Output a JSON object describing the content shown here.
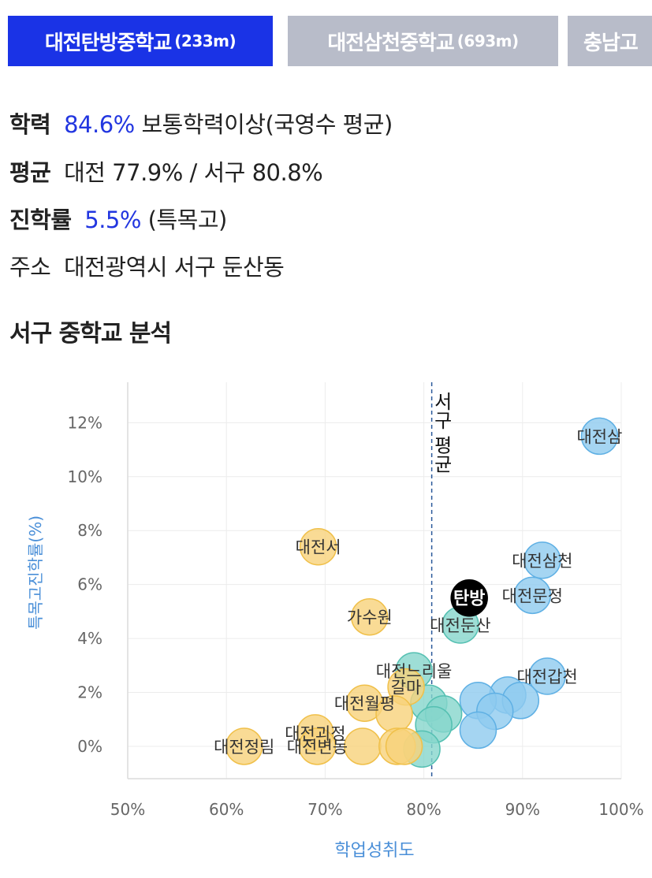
{
  "tabs": [
    {
      "name": "대전탄방중학교",
      "distance": "(233m)",
      "active": true
    },
    {
      "name": "대전삼천중학교",
      "distance": "(693m)",
      "active": false
    },
    {
      "name": "충남고",
      "distance": "",
      "active": false
    }
  ],
  "info": {
    "achievement_label": "학력",
    "achievement_value": "84.6%",
    "achievement_desc": "보통학력이상(국영수 평균)",
    "average_label": "평균",
    "average_value": "대전 77.9% / 서구 80.8%",
    "advance_label": "진학률",
    "advance_value": "5.5%",
    "advance_desc": "(특목고)",
    "address_label": "주소",
    "address_value": "대전광역시 서구 둔산동"
  },
  "section_title": "서구 중학교 분석",
  "colors": {
    "tab_active": "#1a33e6",
    "tab_inactive": "#b8bcc9",
    "highlight_text": "#2236e0",
    "axis_title": "#4a8fd8",
    "bubble_blue": "#8ecbef",
    "bubble_blue_edge": "#5fb0e4",
    "bubble_yellow": "#f7d27a",
    "bubble_yellow_edge": "#f0c04a",
    "bubble_teal": "#86d6cc",
    "bubble_teal_edge": "#55c0b2",
    "bubble_selected": "#000000"
  },
  "chart_data": {
    "type": "scatter",
    "xlabel": "학업성취도",
    "ylabel": "특목고진학률(%)",
    "xlim": [
      50,
      100
    ],
    "ylim": [
      -1.2,
      13.5
    ],
    "xticks": [
      "50%",
      "60%",
      "70%",
      "80%",
      "90%",
      "100%"
    ],
    "yticks": [
      "0%",
      "2%",
      "4%",
      "6%",
      "8%",
      "10%",
      "12%"
    ],
    "grid": true,
    "reference_line": {
      "axis": "x",
      "value": 80.8,
      "label": "서구 평균"
    },
    "points": [
      {
        "label": "대전삼",
        "x": 97.8,
        "y": 11.5,
        "group": "blue"
      },
      {
        "label": "대전삼천",
        "x": 92.0,
        "y": 6.9,
        "group": "blue"
      },
      {
        "label": "대전문정",
        "x": 91.0,
        "y": 5.6,
        "group": "blue"
      },
      {
        "label": "대전갑천",
        "x": 92.5,
        "y": 2.6,
        "group": "blue"
      },
      {
        "label": "",
        "x": 88.5,
        "y": 1.9,
        "group": "blue"
      },
      {
        "label": "",
        "x": 89.8,
        "y": 1.7,
        "group": "blue"
      },
      {
        "label": "",
        "x": 85.5,
        "y": 1.7,
        "group": "blue"
      },
      {
        "label": "",
        "x": 87.2,
        "y": 1.3,
        "group": "blue"
      },
      {
        "label": "",
        "x": 85.5,
        "y": 0.6,
        "group": "blue"
      },
      {
        "label": "대전둔산",
        "x": 83.7,
        "y": 4.5,
        "group": "teal"
      },
      {
        "label": "대전느리울",
        "x": 79.0,
        "y": 2.8,
        "group": "teal"
      },
      {
        "label": "",
        "x": 80.5,
        "y": 1.6,
        "group": "teal"
      },
      {
        "label": "",
        "x": 82.0,
        "y": 1.2,
        "group": "teal"
      },
      {
        "label": "",
        "x": 81.0,
        "y": 0.8,
        "group": "teal"
      },
      {
        "label": "",
        "x": 79.8,
        "y": -0.1,
        "group": "teal"
      },
      {
        "label": "대전서",
        "x": 69.3,
        "y": 7.4,
        "group": "yellow"
      },
      {
        "label": "가수원",
        "x": 74.5,
        "y": 4.8,
        "group": "yellow"
      },
      {
        "label": "갈마",
        "x": 78.2,
        "y": 2.2,
        "group": "yellow"
      },
      {
        "label": "대전월평",
        "x": 74.0,
        "y": 1.6,
        "group": "yellow"
      },
      {
        "label": "",
        "x": 77.0,
        "y": 1.2,
        "group": "yellow"
      },
      {
        "label": "대전괴정",
        "x": 69.0,
        "y": 0.5,
        "group": "yellow"
      },
      {
        "label": "대전정림",
        "x": 61.8,
        "y": 0.0,
        "group": "yellow"
      },
      {
        "label": "대전변동",
        "x": 69.2,
        "y": 0.0,
        "group": "yellow"
      },
      {
        "label": "",
        "x": 73.8,
        "y": 0.0,
        "group": "yellow"
      },
      {
        "label": "",
        "x": 77.3,
        "y": 0.0,
        "group": "yellow"
      },
      {
        "label": "",
        "x": 78.0,
        "y": 0.0,
        "group": "yellow"
      },
      {
        "label": "탄방",
        "x": 84.6,
        "y": 5.5,
        "group": "selected"
      }
    ]
  }
}
